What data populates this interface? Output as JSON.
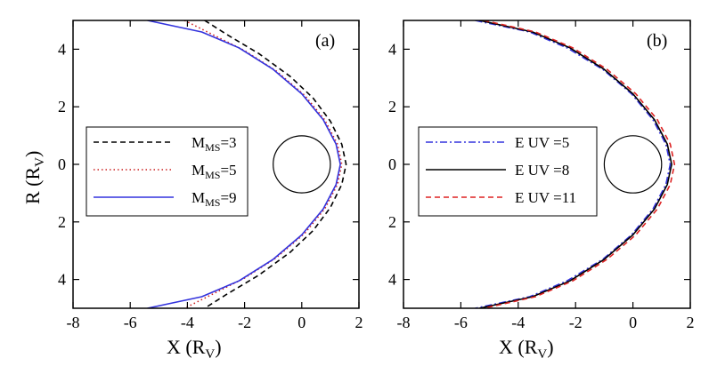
{
  "chart_data": [
    {
      "type": "line",
      "panel_label": "(a)",
      "xlabel": "X (R",
      "xlabel_sub": "V",
      "xlabel_close": ")",
      "ylabel": "R (R",
      "ylabel_sub": "V",
      "ylabel_close": ")",
      "xlim": [
        -8,
        2
      ],
      "ylim": [
        -5,
        5
      ],
      "x_ticks": [
        -8,
        -6,
        -4,
        -2,
        0,
        2
      ],
      "x_tick_labels": [
        "-8",
        "-6",
        "-4",
        "-2",
        "0",
        "2"
      ],
      "y_ticks": [
        4,
        2,
        0,
        -2,
        -4
      ],
      "y_tick_labels": [
        "4",
        "2",
        "0",
        "2",
        "4"
      ],
      "legend_position": "left",
      "obstacle": {
        "shape": "circle",
        "center": [
          0,
          0
        ],
        "radius": 1
      },
      "series": [
        {
          "name_main": "M",
          "name_sub": "MS",
          "name_value": "=3",
          "color": "#000000",
          "style": "dashed",
          "nose_x": 1.55,
          "points": [
            [
              1.55,
              0
            ],
            [
              1.4,
              0.7
            ],
            [
              1.0,
              1.5
            ],
            [
              0.4,
              2.3
            ],
            [
              -0.4,
              3.05
            ],
            [
              -1.5,
              3.85
            ],
            [
              -2.6,
              4.5
            ],
            [
              -3.4,
              5.0
            ]
          ]
        },
        {
          "name_main": "M",
          "name_sub": "MS",
          "name_value": "=5",
          "color": "#cc2222",
          "style": "dotted",
          "nose_x": 1.4,
          "points": [
            [
              1.4,
              0
            ],
            [
              1.25,
              0.7
            ],
            [
              0.8,
              1.55
            ],
            [
              0.1,
              2.4
            ],
            [
              -0.9,
              3.25
            ],
            [
              -2.0,
              3.95
            ],
            [
              -3.2,
              4.55
            ],
            [
              -4.1,
              5.0
            ]
          ]
        },
        {
          "name_main": "M",
          "name_sub": "MS",
          "name_value": "=9",
          "color": "#3333dd",
          "style": "solid",
          "nose_x": 1.35,
          "points": [
            [
              1.35,
              0
            ],
            [
              1.2,
              0.7
            ],
            [
              0.75,
              1.55
            ],
            [
              0.0,
              2.45
            ],
            [
              -1.0,
              3.3
            ],
            [
              -2.2,
              4.05
            ],
            [
              -3.5,
              4.6
            ],
            [
              -5.4,
              5.0
            ]
          ]
        }
      ]
    },
    {
      "type": "line",
      "panel_label": "(b)",
      "xlabel": "X (R",
      "xlabel_sub": "V",
      "xlabel_close": ")",
      "xlim": [
        -8,
        2
      ],
      "ylim": [
        -5,
        5
      ],
      "x_ticks": [
        -8,
        -6,
        -4,
        -2,
        0,
        2
      ],
      "x_tick_labels": [
        "-8",
        "-6",
        "-4",
        "-2",
        "0",
        "2"
      ],
      "y_ticks": [
        4,
        2,
        0,
        -2,
        -4
      ],
      "y_tick_labels": [
        "4",
        "2",
        "0",
        "2",
        "4"
      ],
      "legend_position": "left",
      "obstacle": {
        "shape": "circle",
        "center": [
          0,
          0
        ],
        "radius": 1
      },
      "series": [
        {
          "name": "E UV =5",
          "color": "#3333dd",
          "style": "dashdot",
          "points": [
            [
              1.3,
              0
            ],
            [
              1.15,
              0.7
            ],
            [
              0.7,
              1.55
            ],
            [
              -0.05,
              2.45
            ],
            [
              -1.05,
              3.3
            ],
            [
              -2.3,
              4.05
            ],
            [
              -3.6,
              4.6
            ],
            [
              -5.5,
              5.0
            ]
          ]
        },
        {
          "name": "E UV =8",
          "color": "#000000",
          "style": "solid",
          "points": [
            [
              1.35,
              0
            ],
            [
              1.2,
              0.7
            ],
            [
              0.75,
              1.55
            ],
            [
              0.0,
              2.45
            ],
            [
              -1.0,
              3.3
            ],
            [
              -2.2,
              4.05
            ],
            [
              -3.5,
              4.6
            ],
            [
              -5.35,
              5.0
            ]
          ]
        },
        {
          "name": "E UV =11",
          "color": "#dd2222",
          "style": "dashed",
          "points": [
            [
              1.45,
              0
            ],
            [
              1.3,
              0.7
            ],
            [
              0.85,
              1.55
            ],
            [
              0.1,
              2.45
            ],
            [
              -0.9,
              3.3
            ],
            [
              -2.1,
              4.05
            ],
            [
              -3.4,
              4.6
            ],
            [
              -5.2,
              5.0
            ]
          ]
        }
      ]
    }
  ]
}
